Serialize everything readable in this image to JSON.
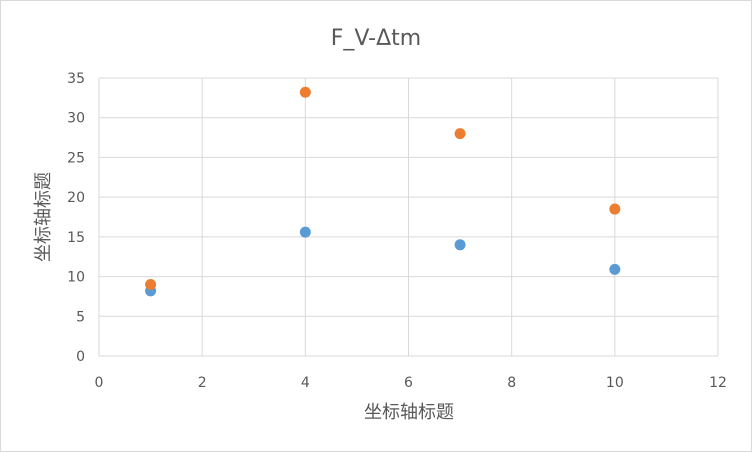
{
  "chart_data": {
    "type": "scatter",
    "title": "F_V-Δtm",
    "xlabel": "坐标轴标题",
    "ylabel": "坐标轴标题",
    "xlim": [
      0,
      12
    ],
    "ylim": [
      0,
      35
    ],
    "x_ticks": [
      0,
      2,
      4,
      6,
      8,
      10,
      12
    ],
    "y_ticks": [
      0,
      5,
      10,
      15,
      20,
      25,
      30,
      35
    ],
    "grid": true,
    "legend": "none",
    "series": [
      {
        "color": "#5B9BD5",
        "points": [
          {
            "x": 1,
            "y": 8.2
          },
          {
            "x": 4,
            "y": 15.6
          },
          {
            "x": 7,
            "y": 14.0
          },
          {
            "x": 10,
            "y": 10.9
          }
        ]
      },
      {
        "color": "#ED7D31",
        "points": [
          {
            "x": 1,
            "y": 9.0
          },
          {
            "x": 4,
            "y": 33.2
          },
          {
            "x": 7,
            "y": 28.0
          },
          {
            "x": 10,
            "y": 18.5
          }
        ]
      }
    ],
    "gridline_color": "#d9d9d9",
    "text_color": "#595959"
  }
}
